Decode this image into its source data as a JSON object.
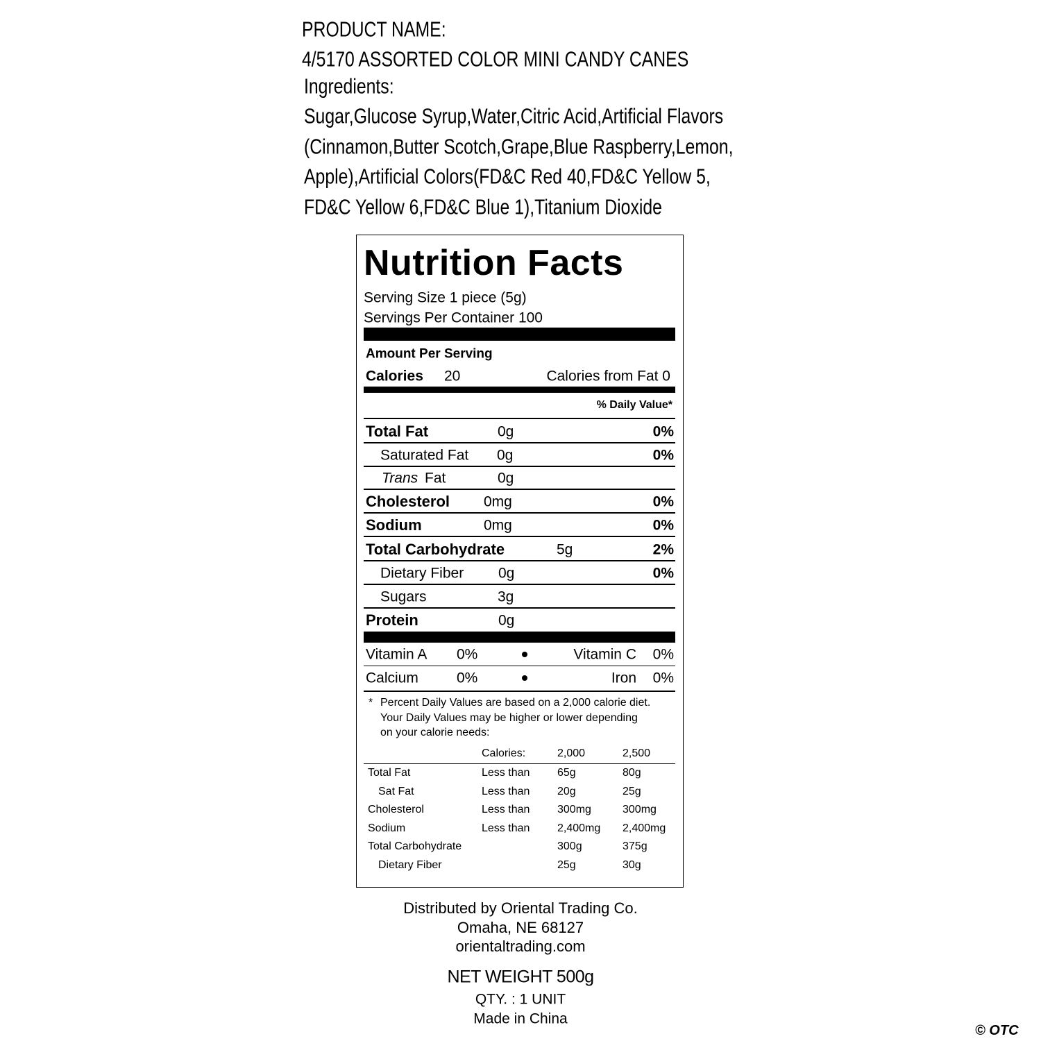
{
  "product": {
    "name_label": "PRODUCT NAME:",
    "name": "4/5170 ASSORTED COLOR MINI CANDY CANES",
    "ingredients_label": "Ingredients:",
    "ingredients_lines": [
      "Sugar,Glucose Syrup,Water,Citric Acid,Artificial Flavors",
      "(Cinnamon,Butter Scotch,Grape,Blue Raspberry,Lemon,",
      "Apple),Artificial Colors(FD&C Red 40,FD&C Yellow 5,",
      "FD&C Yellow 6,FD&C Blue 1),Titanium Dioxide"
    ]
  },
  "nutrition_facts": {
    "title": "Nutrition Facts",
    "serving_size": "Serving Size 1 piece (5g)",
    "servings_per_container": "Servings Per Container 100",
    "amount_per_serving": "Amount Per Serving",
    "calories_label": "Calories",
    "calories_value": "20",
    "calories_from_fat": "Calories from Fat 0",
    "daily_value_header": "% Daily Value*",
    "nutrients": [
      {
        "name": "Total Fat",
        "amount": "0g",
        "dv": "0%"
      },
      {
        "name": "Saturated Fat",
        "amount": "0g",
        "dv": "0%"
      },
      {
        "name_italic": "Trans",
        "name": "Fat",
        "amount": "0g"
      },
      {
        "name": "Cholesterol",
        "amount": "0mg",
        "dv": "0%"
      },
      {
        "name": "Sodium",
        "amount": "0mg",
        "dv": "0%"
      },
      {
        "name": "Total Carbohydrate",
        "amount": "5g",
        "dv": "2%"
      },
      {
        "name": "Dietary Fiber",
        "amount": "0g",
        "dv": "0%"
      },
      {
        "name": "Sugars",
        "amount": "3g"
      },
      {
        "name": "Protein",
        "amount": "0g"
      }
    ],
    "vitamins": [
      {
        "left_name": "Vitamin A",
        "left_value": "0%",
        "right_name": "Vitamin C",
        "right_value": "0%"
      },
      {
        "left_name": "Calcium",
        "left_value": "0%",
        "right_name": "Iron",
        "right_value": "0%"
      }
    ],
    "footnote_marker": "*",
    "footnote_lines": [
      "Percent Daily Values are based on a 2,000 calorie diet.",
      "Your Daily Values may be higher or lower depending",
      "on your calorie needs:"
    ],
    "dv_table": {
      "header": [
        "Calories:",
        "2,000",
        "2,500"
      ],
      "rows": [
        {
          "name": "Total Fat",
          "limit": "Less than",
          "v2000": "65g",
          "v2500": "80g"
        },
        {
          "name": "Sat Fat",
          "limit": "Less than",
          "v2000": "20g",
          "v2500": "25g"
        },
        {
          "name": "Cholesterol",
          "limit": "Less than",
          "v2000": "300mg",
          "v2500": "300mg"
        },
        {
          "name": "Sodium",
          "limit": "Less than",
          "v2000": "2,400mg",
          "v2500": "2,400mg"
        },
        {
          "name": "Total Carbohydrate",
          "v2000": "300g",
          "v2500": "375g"
        },
        {
          "name": "Dietary Fiber",
          "v2000": "25g",
          "v2500": "30g"
        }
      ]
    }
  },
  "distributor_lines": [
    "Distributed by Oriental Trading Co.",
    "Omaha, NE 68127",
    "orientaltrading.com"
  ],
  "net_weight": "NET WEIGHT 500g",
  "quantity": "QTY. : 1 UNIT",
  "origin": "Made in China",
  "copyright": "© OTC"
}
